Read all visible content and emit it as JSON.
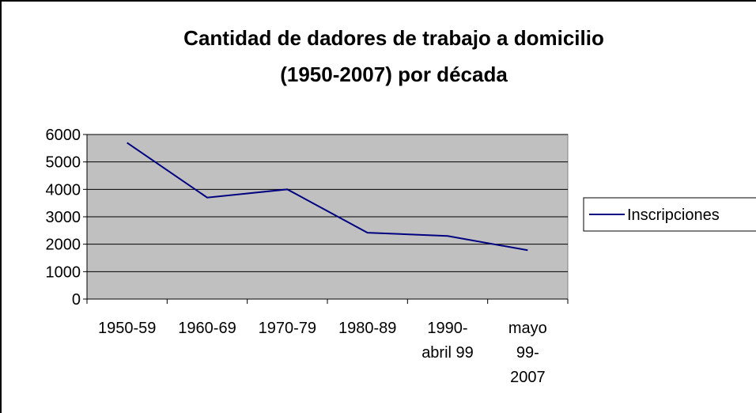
{
  "chart_data": {
    "type": "line",
    "title": [
      "Cantidad de dadores de trabajo a domicilio",
      "(1950-2007) por década"
    ],
    "categories": [
      "1950-59",
      "1960-69",
      "1970-79",
      "1980-89",
      "1990-\nabril 99",
      "mayo\n99-\n2007"
    ],
    "series": [
      {
        "name": "Inscripciones",
        "color": "#000080",
        "values": [
          5700,
          3700,
          4000,
          2420,
          2300,
          1780
        ]
      }
    ],
    "ylim": [
      0,
      6000
    ],
    "yticks": [
      0,
      1000,
      2000,
      3000,
      4000,
      5000,
      6000
    ],
    "grid": true,
    "legend": "right"
  }
}
